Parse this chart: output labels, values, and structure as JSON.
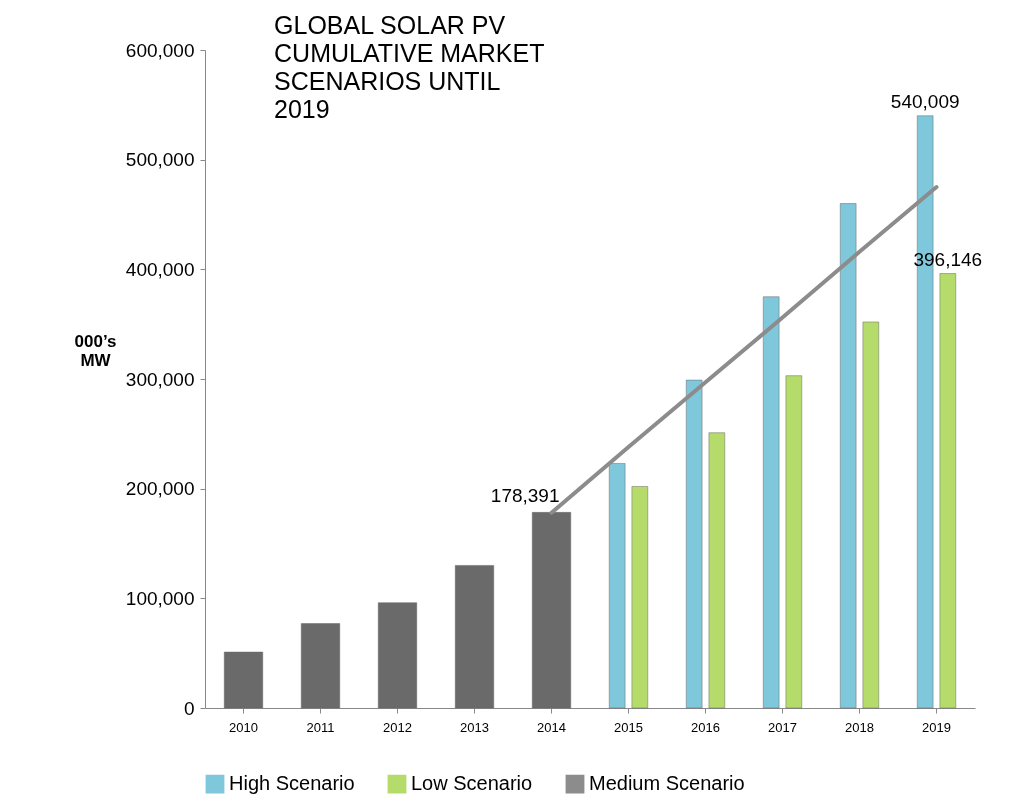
{
  "chart_data": {
    "type": "bar",
    "title": "GLOBAL SOLAR PV CUMULATIVE MARKET SCENARIOS UNTIL 2019",
    "ylabel": "000’s MW",
    "categories": [
      "2010",
      "2011",
      "2012",
      "2013",
      "2014",
      "2015",
      "2016",
      "2017",
      "2018",
      "2019"
    ],
    "series": [
      {
        "color": "#6a6a6a",
        "values": [
          51000,
          77000,
          96000,
          130000,
          178391,
          null,
          null,
          null,
          null,
          null
        ],
        "value_labels": [
          null,
          null,
          null,
          null,
          "178,391",
          null,
          null,
          null,
          null,
          null
        ]
      },
      {
        "name": "High Scenario",
        "color": "#7fc8dc",
        "values": [
          null,
          null,
          null,
          null,
          null,
          223000,
          299000,
          375000,
          460000,
          540009
        ],
        "value_labels": [
          null,
          null,
          null,
          null,
          null,
          null,
          null,
          null,
          null,
          "540,009"
        ]
      },
      {
        "name": "Low Scenario",
        "color": "#b5dc6a",
        "values": [
          null,
          null,
          null,
          null,
          null,
          202000,
          251000,
          303000,
          352000,
          396146
        ],
        "value_labels": [
          null,
          null,
          null,
          null,
          null,
          null,
          null,
          null,
          null,
          "396,146"
        ]
      },
      {
        "name": "Medium Scenario",
        "type": "line",
        "color": "#8c8c8c",
        "values": [
          null,
          null,
          null,
          null,
          178000,
          238000,
          297000,
          356000,
          416000,
          475000
        ]
      }
    ],
    "ylim": [
      0,
      600000
    ],
    "yticks": [
      0,
      {
        "value": 100000,
        "label": "100,000"
      },
      {
        "value": 200000,
        "label": "200,000"
      },
      {
        "value": 300000,
        "label": "300,000"
      },
      {
        "value": 400000,
        "label": "400,000"
      },
      {
        "value": 500000,
        "label": "500,000"
      },
      {
        "value": 600000,
        "label": "600,000"
      }
    ],
    "legend": "bottom"
  }
}
